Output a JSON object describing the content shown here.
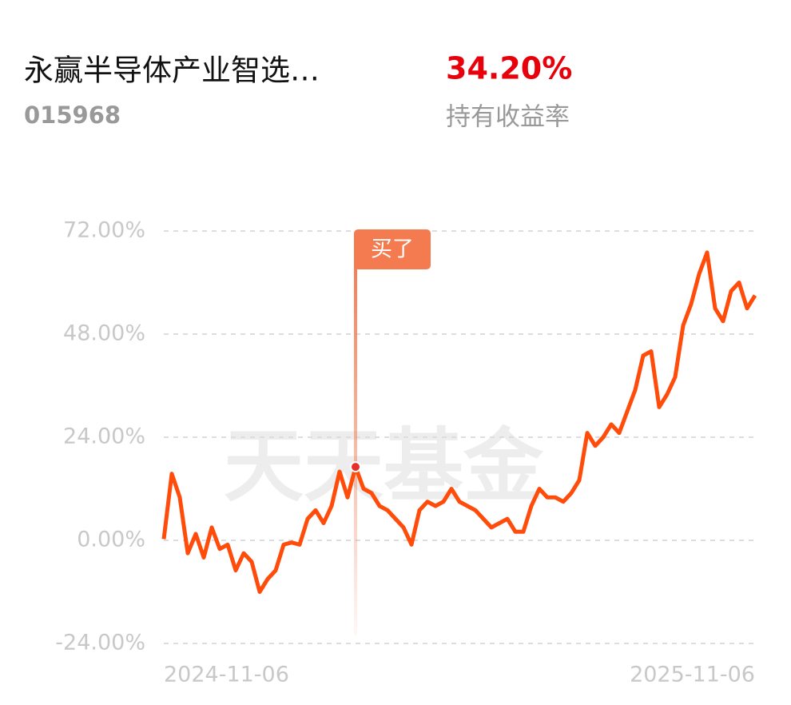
{
  "header": {
    "fund_name": "永赢半导体产业智选…",
    "fund_code": "015968",
    "return_value": "34.20%",
    "return_label": "持有收益率"
  },
  "chart_data": {
    "type": "line",
    "watermark": "天天基金",
    "categories": [
      "2024-11-06",
      null,
      null,
      null,
      null,
      null,
      null,
      null,
      null,
      null,
      null,
      null,
      null,
      null,
      null,
      null,
      null,
      null,
      null,
      null,
      null,
      null,
      null,
      null,
      null,
      null,
      null,
      null,
      null,
      null,
      null,
      null,
      null,
      null,
      null,
      null,
      null,
      null,
      null,
      null,
      null,
      null,
      null,
      null,
      null,
      null,
      null,
      null,
      null,
      null,
      null,
      null,
      null,
      null,
      null,
      null,
      null,
      null,
      null,
      null,
      null,
      null,
      null,
      null,
      null,
      null,
      null,
      null,
      null,
      null,
      null,
      null,
      null,
      null,
      "2025-11-06"
    ],
    "values": [
      0.3,
      15.5,
      10,
      -3,
      1.5,
      -4,
      3,
      -2,
      -1,
      -7,
      -3,
      -5,
      -12,
      -9,
      -7,
      -1,
      -0.5,
      -1,
      5,
      7,
      4,
      8,
      16,
      10,
      17.1,
      12,
      11,
      8,
      7,
      5,
      3,
      -1,
      7,
      9,
      8,
      9,
      12,
      9,
      8,
      7,
      5,
      3,
      4,
      5,
      2,
      2,
      8,
      12,
      10,
      10,
      9,
      11,
      14,
      25,
      22,
      24,
      27,
      25,
      30,
      35,
      43,
      44,
      31,
      34,
      38,
      50,
      55,
      62,
      67,
      54,
      51,
      58,
      60,
      54,
      57
    ],
    "color": "#ff4c0a",
    "ylim": [
      -24,
      72
    ],
    "yticks": [
      {
        "value": -24,
        "label": "-24.00%"
      },
      {
        "value": 0,
        "label": "0.00%"
      },
      {
        "value": 24,
        "label": "24.00%"
      },
      {
        "value": 48,
        "label": "48.00%"
      },
      {
        "value": 72,
        "label": "72.00%"
      }
    ],
    "grid": true,
    "annotation": {
      "text": "买了",
      "value": 17.1
    }
  }
}
